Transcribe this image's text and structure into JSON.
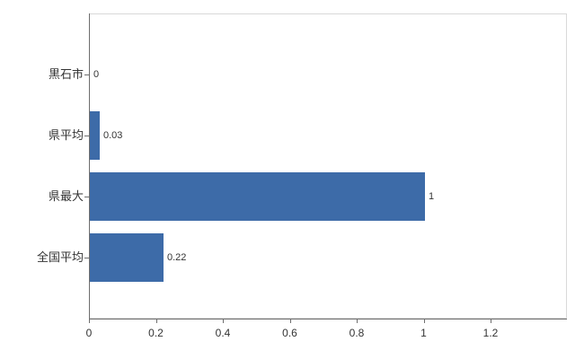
{
  "chart_data": {
    "type": "bar",
    "orientation": "horizontal",
    "categories": [
      "黒石市",
      "県平均",
      "県最大",
      "全国平均"
    ],
    "values": [
      0,
      0.03,
      1,
      0.22
    ],
    "value_labels": [
      "0",
      "0.03",
      "1",
      "0.22"
    ],
    "x_ticks": [
      0,
      0.2,
      0.4,
      0.6,
      0.8,
      1.0,
      1.2
    ],
    "x_tick_labels": [
      "0",
      "0.2",
      "0.4",
      "0.6",
      "0.8",
      "1",
      "1.2"
    ],
    "xlim": [
      0,
      1.2
    ],
    "grid": false,
    "legend": "none",
    "colors": {
      "bar": "#3d6ba8",
      "axis": "#6e6e6e",
      "plot_border": "#d9d9d9",
      "text": "#333333"
    }
  }
}
